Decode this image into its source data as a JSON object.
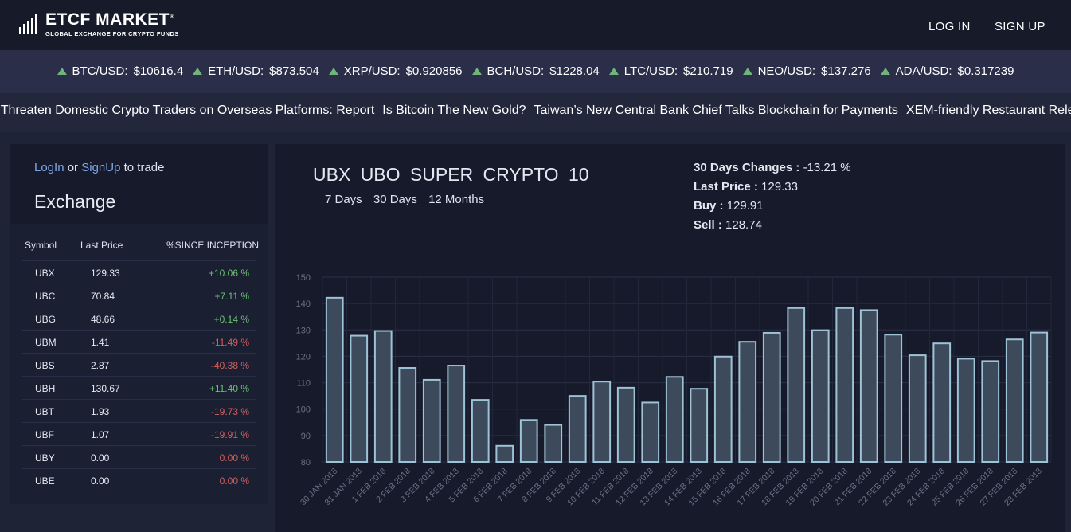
{
  "header": {
    "brand": "ETCF MARKET",
    "brand_mark": "®",
    "tagline": "GLOBAL EXCHANGE FOR CRYPTO FUNDS",
    "login": "LOG IN",
    "signup": "SIGN UP"
  },
  "ticker": [
    {
      "pair": "BTC/USD:",
      "price": "$10616.4"
    },
    {
      "pair": "ETH/USD:",
      "price": "$873.504"
    },
    {
      "pair": "XRP/USD:",
      "price": "$0.920856"
    },
    {
      "pair": "BCH/USD:",
      "price": "$1228.04"
    },
    {
      "pair": "LTC/USD:",
      "price": "$210.719"
    },
    {
      "pair": "NEO/USD:",
      "price": "$137.276"
    },
    {
      "pair": "ADA/USD:",
      "price": "$0.317239"
    }
  ],
  "news": [
    "China to Threaten Domestic Crypto Traders on Overseas Platforms: Report",
    "Is Bitcoin The New Gold?",
    "Taiwan’s New Central Bank Chief Talks Blockchain for Payments",
    "XEM-friendly Restaurant Rele"
  ],
  "colors": {
    "up": "#6fb47a",
    "down": "#d25f5f",
    "link": "#7fa6e8",
    "bar_fill": "#3d4a5c",
    "bar_stroke": "#9fc3d6"
  },
  "exchange": {
    "login_link": "LogIn",
    "or_text": "or",
    "signup_link": "SignUp",
    "to_trade": "to trade",
    "title": "Exchange",
    "headers": [
      "Symbol",
      "Last Price",
      "%SINCE INCEPTION"
    ],
    "rows": [
      {
        "symbol": "UBX",
        "price": "129.33",
        "change": "+10.06 %",
        "dir": "pos"
      },
      {
        "symbol": "UBC",
        "price": "70.84",
        "change": "+7.11 %",
        "dir": "pos"
      },
      {
        "symbol": "UBG",
        "price": "48.66",
        "change": "+0.14 %",
        "dir": "pos"
      },
      {
        "symbol": "UBM",
        "price": "1.41",
        "change": "-11.49 %",
        "dir": "neg"
      },
      {
        "symbol": "UBS",
        "price": "2.87",
        "change": "-40.38 %",
        "dir": "neg"
      },
      {
        "symbol": "UBH",
        "price": "130.67",
        "change": "+11.40 %",
        "dir": "pos"
      },
      {
        "symbol": "UBT",
        "price": "1.93",
        "change": "-19.73 %",
        "dir": "neg"
      },
      {
        "symbol": "UBF",
        "price": "1.07",
        "change": "-19.91 %",
        "dir": "neg"
      },
      {
        "symbol": "UBY",
        "price": "0.00",
        "change": "0.00 %",
        "dir": "neg"
      },
      {
        "symbol": "UBE",
        "price": "0.00",
        "change": "0.00 %",
        "dir": "neg"
      }
    ]
  },
  "fund": {
    "symbol": "UBX",
    "name": "UBO SUPER CRYPTO 10",
    "periods": [
      "7 Days",
      "30 Days",
      "12 Months"
    ],
    "stats": [
      {
        "label": "30 Days Changes :",
        "value": "-13.21 %"
      },
      {
        "label": "Last Price :",
        "value": "129.33"
      },
      {
        "label": "Buy :",
        "value": "129.91"
      },
      {
        "label": "Sell :",
        "value": "128.74"
      }
    ]
  },
  "chart_data": {
    "type": "bar",
    "ylim": [
      80,
      150
    ],
    "yticks": [
      80,
      90,
      100,
      110,
      120,
      130,
      140,
      150
    ],
    "grid": true,
    "categories": [
      "30 JAN 2018",
      "31 JAN 2018",
      "1 FEB 2018",
      "2 FEB 2018",
      "3 FEB 2018",
      "4 FEB 2018",
      "5 FEB 2018",
      "6 FEB 2018",
      "7 FEB 2018",
      "8 FEB 2018",
      "9 FEB 2018",
      "10 FEB 2018",
      "11 FEB 2018",
      "12 FEB 2018",
      "13 FEB 2018",
      "14 FEB 2018",
      "15 FEB 2018",
      "16 FEB 2018",
      "17 FEB 2018",
      "18 FEB 2018",
      "19 FEB 2018",
      "20 FEB 2018",
      "21 FEB 2018",
      "22 FEB 2018",
      "23 FEB 2018",
      "24 FEB 2018",
      "25 FEB 2018",
      "26 FEB 2018",
      "27 FEB 2018",
      "28 FEB 2018"
    ],
    "values": [
      142.2,
      127.8,
      129.6,
      115.6,
      111.1,
      116.5,
      103.5,
      86.1,
      95.9,
      94.0,
      105.0,
      110.4,
      108.1,
      102.5,
      112.2,
      107.7,
      119.9,
      125.5,
      128.9,
      138.3,
      129.9,
      138.3,
      137.5,
      128.2,
      120.4,
      124.9,
      119.1,
      118.2,
      126.4,
      129.0
    ]
  }
}
